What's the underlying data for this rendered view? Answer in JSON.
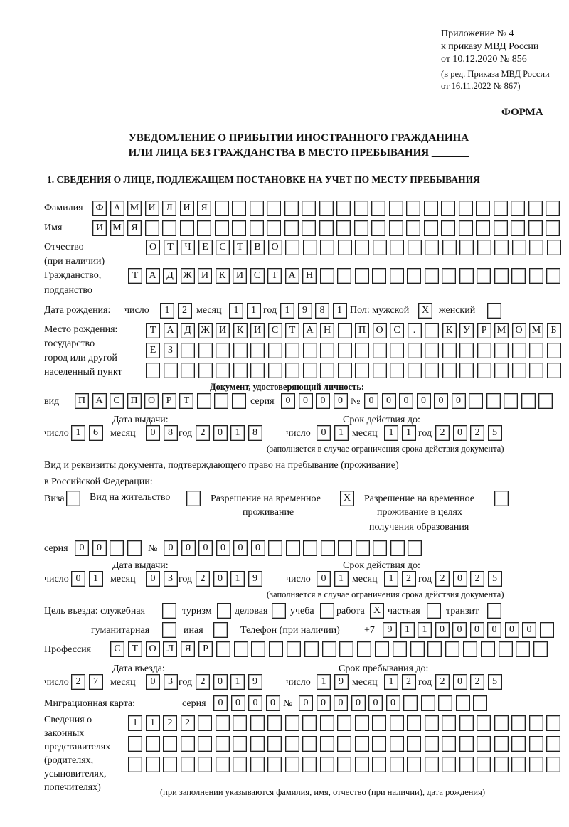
{
  "header": {
    "appendix": "Приложение № 4",
    "order_line1": "к приказу МВД России",
    "order_line2": "от 10.12.2020 № 856",
    "edition_line1": "(в ред. Приказа МВД России",
    "edition_line2": "от 16.11.2022 № 867)",
    "form_label": "ФОРМА",
    "title_line1": "УВЕДОМЛЕНИЕ О ПРИБЫТИИ ИНОСТРАННОГО ГРАЖДАНИНА",
    "title_line2": "ИЛИ ЛИЦА БЕЗ ГРАЖДАНСТВА В МЕСТО ПРЕБЫВАНИЯ _______",
    "section1": "1. СВЕДЕНИЯ О ЛИЦЕ, ПОДЛЕЖАЩЕМ ПОСТАНОВКЕ НА УЧЕТ ПО МЕСТУ ПРЕБЫВАНИЯ"
  },
  "person": {
    "surname": {
      "label": "Фамилия",
      "boxes": [
        "Ф",
        "А",
        "М",
        "И",
        "Л",
        "И",
        "Я",
        "",
        "",
        "",
        "",
        "",
        "",
        "",
        "",
        "",
        "",
        "",
        "",
        "",
        "",
        "",
        "",
        "",
        "",
        "",
        ""
      ]
    },
    "name": {
      "label": "Имя",
      "boxes": [
        "И",
        "М",
        "Я",
        "",
        "",
        "",
        "",
        "",
        "",
        "",
        "",
        "",
        "",
        "",
        "",
        "",
        "",
        "",
        "",
        "",
        "",
        "",
        "",
        "",
        "",
        "",
        ""
      ]
    },
    "patronymic": {
      "label1": "Отчество",
      "label2": "(при наличии)",
      "boxes": [
        "О",
        "Т",
        "Ч",
        "Е",
        "С",
        "Т",
        "В",
        "О",
        "",
        "",
        "",
        "",
        "",
        "",
        "",
        "",
        "",
        "",
        "",
        "",
        "",
        "",
        "",
        ""
      ]
    },
    "citizenship": {
      "label1": "Гражданство,",
      "label2": "подданство",
      "boxes": [
        "Т",
        "А",
        "Д",
        "Ж",
        "И",
        "К",
        "И",
        "С",
        "Т",
        "А",
        "Н",
        "",
        "",
        "",
        "",
        "",
        "",
        "",
        "",
        "",
        "",
        "",
        "",
        "",
        ""
      ]
    },
    "birth_date": {
      "label": "Дата рождения:",
      "day_label": "число",
      "day": [
        "1",
        "2"
      ],
      "month_label": "месяц",
      "month": [
        "1",
        "1"
      ],
      "year_label": "год",
      "year": [
        "1",
        "9",
        "8",
        "1"
      ]
    },
    "sex": {
      "label": "Пол: мужской",
      "male": "X",
      "female_label": "женский",
      "female": ""
    },
    "birth_place": {
      "label1": "Место рождения:",
      "label2": "государство",
      "label3": "город или другой",
      "label4": "населенный пункт",
      "row1": [
        "Т",
        "А",
        "Д",
        "Ж",
        "И",
        "К",
        "И",
        "С",
        "Т",
        "А",
        "Н",
        "",
        "П",
        "О",
        "С",
        ".",
        "",
        "К",
        "У",
        "Р",
        "М",
        "О",
        "М",
        "Б"
      ],
      "row2": [
        "Е",
        "З",
        "",
        "",
        "",
        "",
        "",
        "",
        "",
        "",
        "",
        "",
        "",
        "",
        "",
        "",
        "",
        "",
        "",
        "",
        "",
        "",
        "",
        ""
      ],
      "row3": [
        "",
        "",
        "",
        "",
        "",
        "",
        "",
        "",
        "",
        "",
        "",
        "",
        "",
        "",
        "",
        "",
        "",
        "",
        "",
        "",
        "",
        "",
        "",
        ""
      ]
    }
  },
  "id_document": {
    "heading": "Документ, удостоверяющий личность:",
    "type_label": "вид",
    "type": [
      "П",
      "А",
      "С",
      "П",
      "О",
      "Р",
      "Т",
      "",
      "",
      ""
    ],
    "series_label": "серия",
    "series": [
      "0",
      "0",
      "0",
      "0"
    ],
    "number_label": "№",
    "number": [
      "0",
      "0",
      "0",
      "0",
      "0",
      "0",
      "",
      "",
      "",
      "",
      ""
    ],
    "issue_label": "Дата выдачи:",
    "issue": {
      "day_label": "число",
      "day": [
        "1",
        "6"
      ],
      "month_label": "месяц",
      "month": [
        "0",
        "8"
      ],
      "year_label": "год",
      "year": [
        "2",
        "0",
        "1",
        "8"
      ]
    },
    "valid_label": "Срок действия до:",
    "valid": {
      "day_label": "число",
      "day": [
        "0",
        "1"
      ],
      "month_label": "месяц",
      "month": [
        "1",
        "1"
      ],
      "year_label": "год",
      "year": [
        "2",
        "0",
        "2",
        "5"
      ]
    },
    "valid_note": "(заполняется в случае ограничения срока действия документа)"
  },
  "stay_document": {
    "heading1": "Вид и реквизиты документа, подтверждающего право на пребывание (проживание)",
    "heading2": "в Российской Федерации:",
    "visa_label": "Виза",
    "visa": "",
    "residence_label": "Вид на жительство",
    "residence": "",
    "temp_label1": "Разрешение на временное",
    "temp_label2": "проживание",
    "temp": "X",
    "edu_label1": "Разрешение на временное",
    "edu_label2": "проживание в целях",
    "edu_label3": "получения образования",
    "edu": "",
    "series_label": "серия",
    "series": [
      "0",
      "0",
      "",
      ""
    ],
    "number_label": "№",
    "number": [
      "0",
      "0",
      "0",
      "0",
      "0",
      "0",
      "",
      "",
      "",
      "",
      "",
      "",
      "",
      "",
      ""
    ],
    "issue_label": "Дата выдачи:",
    "issue": {
      "day_label": "число",
      "day": [
        "0",
        "1"
      ],
      "month_label": "месяц",
      "month": [
        "0",
        "3"
      ],
      "year_label": "год",
      "year": [
        "2",
        "0",
        "1",
        "9"
      ]
    },
    "valid_label": "Срок действия до:",
    "valid": {
      "day_label": "число",
      "day": [
        "0",
        "1"
      ],
      "month_label": "месяц",
      "month": [
        "1",
        "2"
      ],
      "year_label": "год",
      "year": [
        "2",
        "0",
        "2",
        "5"
      ]
    },
    "valid_note": "(заполняется в случае ограничения срока действия документа)"
  },
  "purpose": {
    "label": "Цель въезда: служебная",
    "official": "",
    "tourism_label": "туризм",
    "tourism": "",
    "business_label": "деловая",
    "business": "",
    "study_label": "учеба",
    "study": "",
    "work_label": "работа",
    "work": "X",
    "private_label": "частная",
    "private": "",
    "transit_label": "транзит",
    "transit": "",
    "humanitarian_label": "гуманитарная",
    "humanitarian": "",
    "other_label": "иная",
    "other": ""
  },
  "phone": {
    "label": "Телефон (при наличии)",
    "prefix": "+7",
    "boxes": [
      "9",
      "1",
      "1",
      "0",
      "0",
      "0",
      "0",
      "0",
      "0",
      ""
    ]
  },
  "profession": {
    "label": "Профессия",
    "boxes": [
      "С",
      "Т",
      "О",
      "Л",
      "Я",
      "Р",
      "",
      "",
      "",
      "",
      "",
      "",
      "",
      "",
      "",
      "",
      "",
      "",
      "",
      "",
      "",
      "",
      "",
      "",
      ""
    ]
  },
  "entry": {
    "entry_label": "Дата въезда:",
    "entry": {
      "day_label": "число",
      "day": [
        "2",
        "7"
      ],
      "month_label": "месяц",
      "month": [
        "0",
        "3"
      ],
      "year_label": "год",
      "year": [
        "2",
        "0",
        "1",
        "9"
      ]
    },
    "stay_label": "Срок пребывания до:",
    "stay": {
      "day_label": "число",
      "day": [
        "1",
        "9"
      ],
      "month_label": "месяц",
      "month": [
        "1",
        "2"
      ],
      "year_label": "год",
      "year": [
        "2",
        "0",
        "2",
        "5"
      ]
    }
  },
  "migration_card": {
    "label": "Миграционная карта:",
    "series_label": "серия",
    "series": [
      "0",
      "0",
      "0",
      "0"
    ],
    "number_label": "№",
    "number": [
      "0",
      "0",
      "0",
      "0",
      "0",
      "0",
      "",
      "",
      "",
      "",
      ""
    ]
  },
  "legal_reps": {
    "label1": "Сведения о",
    "label2": "законных",
    "label3": "представителях",
    "label4": "(родителях,",
    "label5": "усыновителях,",
    "label6": "попечителях)",
    "row1": [
      "1",
      "1",
      "2",
      "2",
      "",
      "",
      "",
      "",
      "",
      "",
      "",
      "",
      "",
      "",
      "",
      "",
      "",
      "",
      "",
      "",
      "",
      "",
      "",
      "",
      ""
    ],
    "row2": [
      "",
      "",
      "",
      "",
      "",
      "",
      "",
      "",
      "",
      "",
      "",
      "",
      "",
      "",
      "",
      "",
      "",
      "",
      "",
      "",
      "",
      "",
      "",
      "",
      ""
    ],
    "row3": [
      "",
      "",
      "",
      "",
      "",
      "",
      "",
      "",
      "",
      "",
      "",
      "",
      "",
      "",
      "",
      "",
      "",
      "",
      "",
      "",
      "",
      "",
      "",
      "",
      ""
    ],
    "note": "(при заполнении указываются фамилия, имя, отчество (при наличии), дата рождения)"
  }
}
